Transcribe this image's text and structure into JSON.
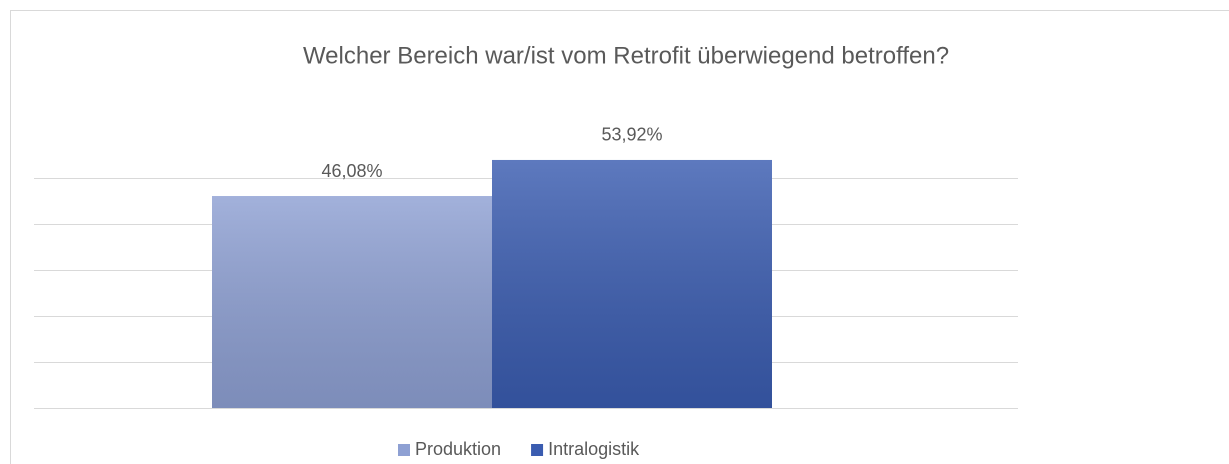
{
  "chart_data": {
    "type": "bar",
    "title": "Welcher Bereich war/ist vom Retrofit überwiegend betroffen?",
    "categories": [
      null
    ],
    "series": [
      {
        "name": "Produktion",
        "color": "#8ea0d3",
        "values": [
          46.08
        ],
        "value_labels": [
          "46,08%"
        ]
      },
      {
        "name": "Intralogistik",
        "color": "#3a5cb0",
        "values": [
          53.92
        ],
        "value_labels": [
          "53,92%"
        ]
      }
    ],
    "ylim": [
      0,
      60
    ],
    "yticks": [
      0,
      10,
      20,
      30,
      40,
      50
    ],
    "grid": true,
    "legend": "bottom"
  }
}
